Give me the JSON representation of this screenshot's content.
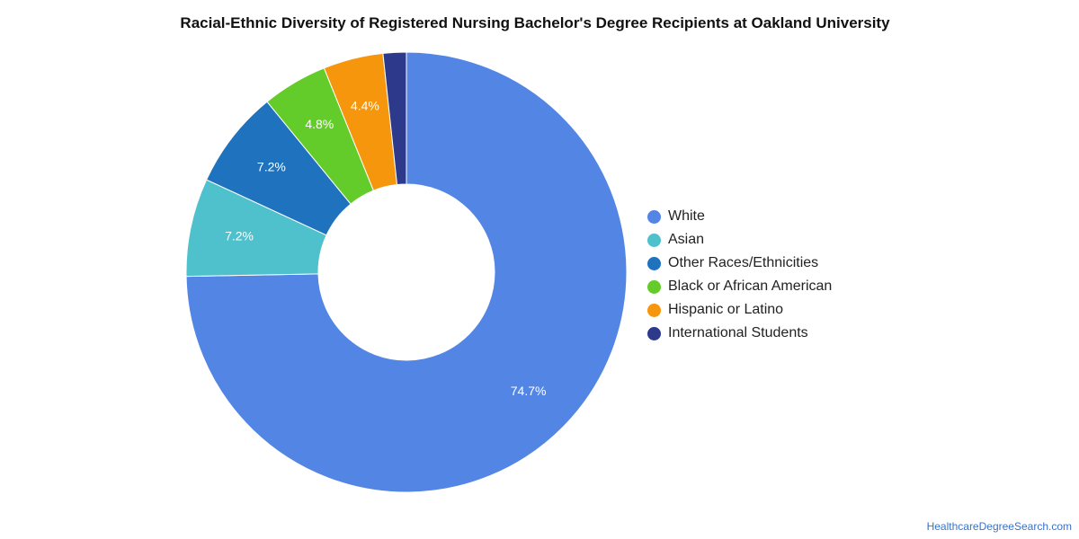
{
  "source": "HealthcareDegreeSearch.com",
  "chart_data": {
    "type": "pie",
    "title": "Racial-Ethnic Diversity of Registered Nursing Bachelor's Degree Recipients at Oakland University",
    "categories": [
      "White",
      "Asian",
      "Other Races/Ethnicities",
      "Black or African American",
      "Hispanic or Latino",
      "International Students"
    ],
    "values": [
      74.7,
      7.2,
      7.2,
      4.8,
      4.4,
      1.7
    ],
    "data_labels": [
      "74.7%",
      "7.2%",
      "7.2%",
      "4.8%",
      "4.4%",
      ""
    ],
    "colors": [
      "#5386e4",
      "#4fc1cc",
      "#1f72bd",
      "#64cc2a",
      "#f5960d",
      "#2d3a8c"
    ],
    "donut": true,
    "legend_position": "right"
  }
}
